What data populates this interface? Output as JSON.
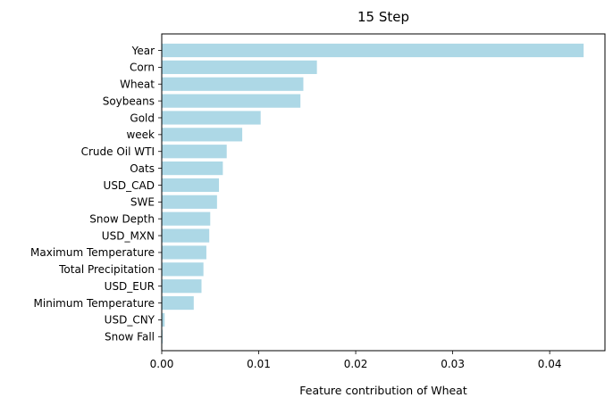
{
  "chart_data": {
    "type": "bar",
    "orientation": "horizontal",
    "title": "15 Step",
    "xlabel": "Feature contribution of Wheat",
    "ylabel": "",
    "xlim": [
      0,
      0.0457
    ],
    "xticks": [
      "0.00",
      "0.01",
      "0.02",
      "0.03",
      "0.04"
    ],
    "bar_color": "#add8e6",
    "grid": false,
    "categories": [
      "Year",
      "Corn",
      "Wheat",
      "Soybeans",
      "Gold",
      "week",
      "Crude Oil WTI",
      "Oats",
      "USD_CAD",
      "SWE",
      "Snow Depth",
      "USD_MXN",
      "Maximum Temperature",
      "Total Precipitation",
      "USD_EUR",
      "Minimum Temperature",
      "USD_CNY",
      "Snow Fall"
    ],
    "values": [
      0.0435,
      0.016,
      0.0146,
      0.0143,
      0.0102,
      0.0083,
      0.0067,
      0.0063,
      0.0059,
      0.0057,
      0.005,
      0.0049,
      0.0046,
      0.0043,
      0.0041,
      0.0033,
      0.0003,
      0.0001
    ]
  }
}
